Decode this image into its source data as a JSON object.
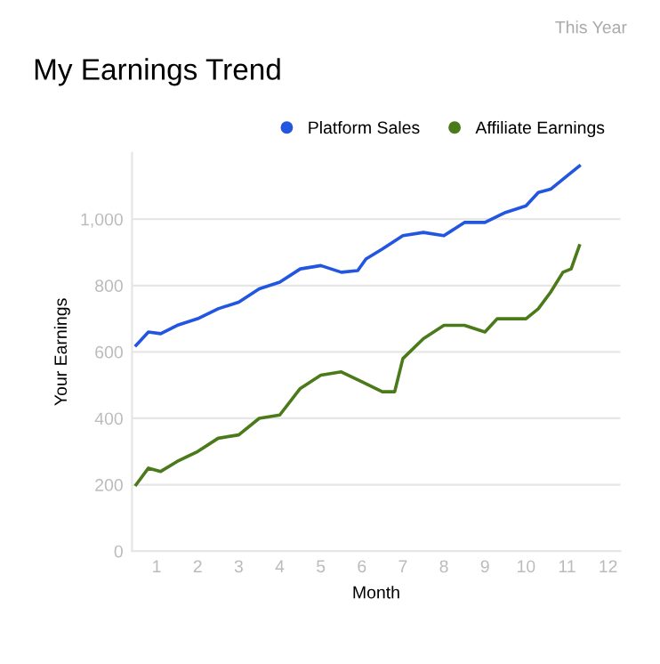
{
  "chart_data": {
    "type": "line",
    "title": "My Earnings Trend",
    "xlabel": "Month",
    "ylabel": "Your Earnings",
    "annotations": [
      "This Year"
    ],
    "series": [
      {
        "name": "Platform Sales",
        "color": "#2255e0",
        "x": [
          0.5,
          0.8,
          1.1,
          1.5,
          2.0,
          2.5,
          3.0,
          3.5,
          4.0,
          4.5,
          5.0,
          5.5,
          5.9,
          6.1,
          6.5,
          7.0,
          7.5,
          8.0,
          8.5,
          9.0,
          9.5,
          10.0,
          10.3,
          10.6,
          11.0,
          11.3
        ],
        "values": [
          620,
          660,
          655,
          680,
          700,
          730,
          750,
          790,
          810,
          850,
          860,
          840,
          845,
          880,
          910,
          950,
          960,
          950,
          990,
          990,
          1020,
          1040,
          1080,
          1090,
          1130,
          1160
        ]
      },
      {
        "name": "Affiliate Earnings",
        "color": "#4a7a1a",
        "x": [
          0.5,
          0.8,
          1.1,
          1.5,
          2.0,
          2.5,
          3.0,
          3.5,
          4.0,
          4.5,
          5.0,
          5.5,
          6.0,
          6.5,
          6.8,
          7.0,
          7.5,
          8.0,
          8.5,
          9.0,
          9.3,
          9.6,
          10.0,
          10.3,
          10.6,
          10.9,
          11.1,
          11.3
        ],
        "values": [
          200,
          250,
          240,
          270,
          300,
          340,
          350,
          400,
          410,
          490,
          530,
          540,
          510,
          480,
          480,
          580,
          640,
          680,
          680,
          660,
          700,
          700,
          700,
          730,
          780,
          840,
          850,
          920
        ]
      }
    ],
    "xlim": [
      0.4,
      12.3
    ],
    "xticks": [
      1,
      2,
      3,
      4,
      5,
      6,
      7,
      8,
      9,
      10,
      11,
      12
    ],
    "ylim": [
      0,
      1200
    ],
    "yticks": [
      0,
      200,
      400,
      600,
      800,
      {
        "value": 1000,
        "label": "1,000"
      }
    ],
    "grid": "y",
    "legend": "top right",
    "marker": "none",
    "line_style": "solid"
  }
}
